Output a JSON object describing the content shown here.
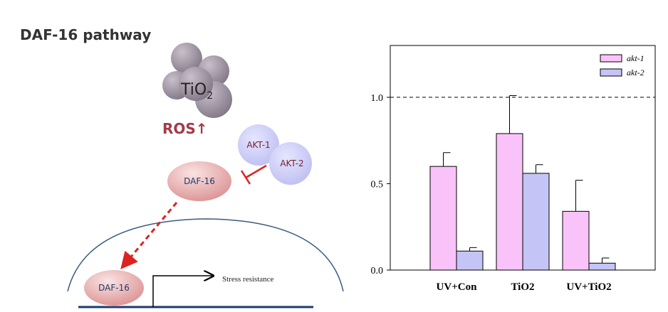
{
  "diagram": {
    "title": "DAF-16 pathway",
    "particle": {
      "text": "TiO",
      "subscript": "2"
    },
    "ros": "ROS↑",
    "kinases": [
      "AKT-1",
      "AKT-2"
    ],
    "daf16_cytoplasm": "DAF-16",
    "daf16_nucleus": "DAF-16",
    "gene": "Stress resistance"
  },
  "chart_data": {
    "type": "bar",
    "categories": [
      "UV+Con",
      "TiO2",
      "UV+TiO2"
    ],
    "series": [
      {
        "name": "akt-1",
        "color": "#f9c3f9",
        "values": [
          0.6,
          0.79,
          0.34
        ],
        "errors": [
          0.08,
          0.22,
          0.18
        ]
      },
      {
        "name": "akt-2",
        "color": "#c4c4f7",
        "values": [
          0.11,
          0.56,
          0.04
        ],
        "errors": [
          0.02,
          0.05,
          0.03
        ]
      }
    ],
    "ylim": [
      0,
      1.3
    ],
    "yticks": [
      {
        "value": 0,
        "label": "0.0"
      },
      0.5,
      {
        "value": 1,
        "label": "1.0"
      }
    ],
    "reference_line": {
      "value": 1,
      "style": "dashed"
    },
    "legend": "top-right",
    "grid": false
  }
}
